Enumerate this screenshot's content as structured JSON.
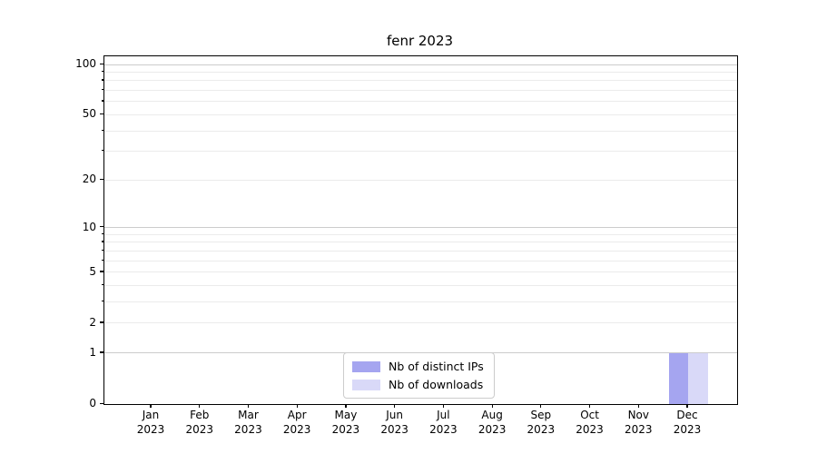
{
  "chart_data": {
    "type": "bar",
    "title": "fenr 2023",
    "categories": [
      {
        "month": "Jan",
        "year": "2023"
      },
      {
        "month": "Feb",
        "year": "2023"
      },
      {
        "month": "Mar",
        "year": "2023"
      },
      {
        "month": "Apr",
        "year": "2023"
      },
      {
        "month": "May",
        "year": "2023"
      },
      {
        "month": "Jun",
        "year": "2023"
      },
      {
        "month": "Jul",
        "year": "2023"
      },
      {
        "month": "Aug",
        "year": "2023"
      },
      {
        "month": "Sep",
        "year": "2023"
      },
      {
        "month": "Oct",
        "year": "2023"
      },
      {
        "month": "Nov",
        "year": "2023"
      },
      {
        "month": "Dec",
        "year": "2023"
      }
    ],
    "series": [
      {
        "name": "Nb of distinct IPs",
        "color": "#a5a5f0",
        "values": [
          0,
          0,
          0,
          0,
          0,
          0,
          0,
          0,
          0,
          0,
          0,
          1
        ]
      },
      {
        "name": "Nb of downloads",
        "color": "#d9d9f8",
        "values": [
          0,
          0,
          0,
          0,
          0,
          0,
          0,
          0,
          0,
          0,
          0,
          1
        ]
      }
    ],
    "y_axis": {
      "scale": "log1p",
      "max": 112,
      "major_ticks": [
        0,
        1,
        2,
        5,
        10,
        20,
        50,
        100
      ],
      "minor_ticks": [
        3,
        4,
        6,
        7,
        8,
        9,
        30,
        40,
        60,
        70,
        80,
        90
      ],
      "decade_grid_ticks": [
        1,
        10,
        100
      ]
    },
    "xlabel": "",
    "ylabel": "",
    "grid": true,
    "legend_position": "inside-bottom-center",
    "colors": {
      "major_grid": "#cccccc",
      "minor_grid": "#ebebeb",
      "axis": "#000000",
      "background": "#ffffff",
      "text": "#000000"
    }
  }
}
